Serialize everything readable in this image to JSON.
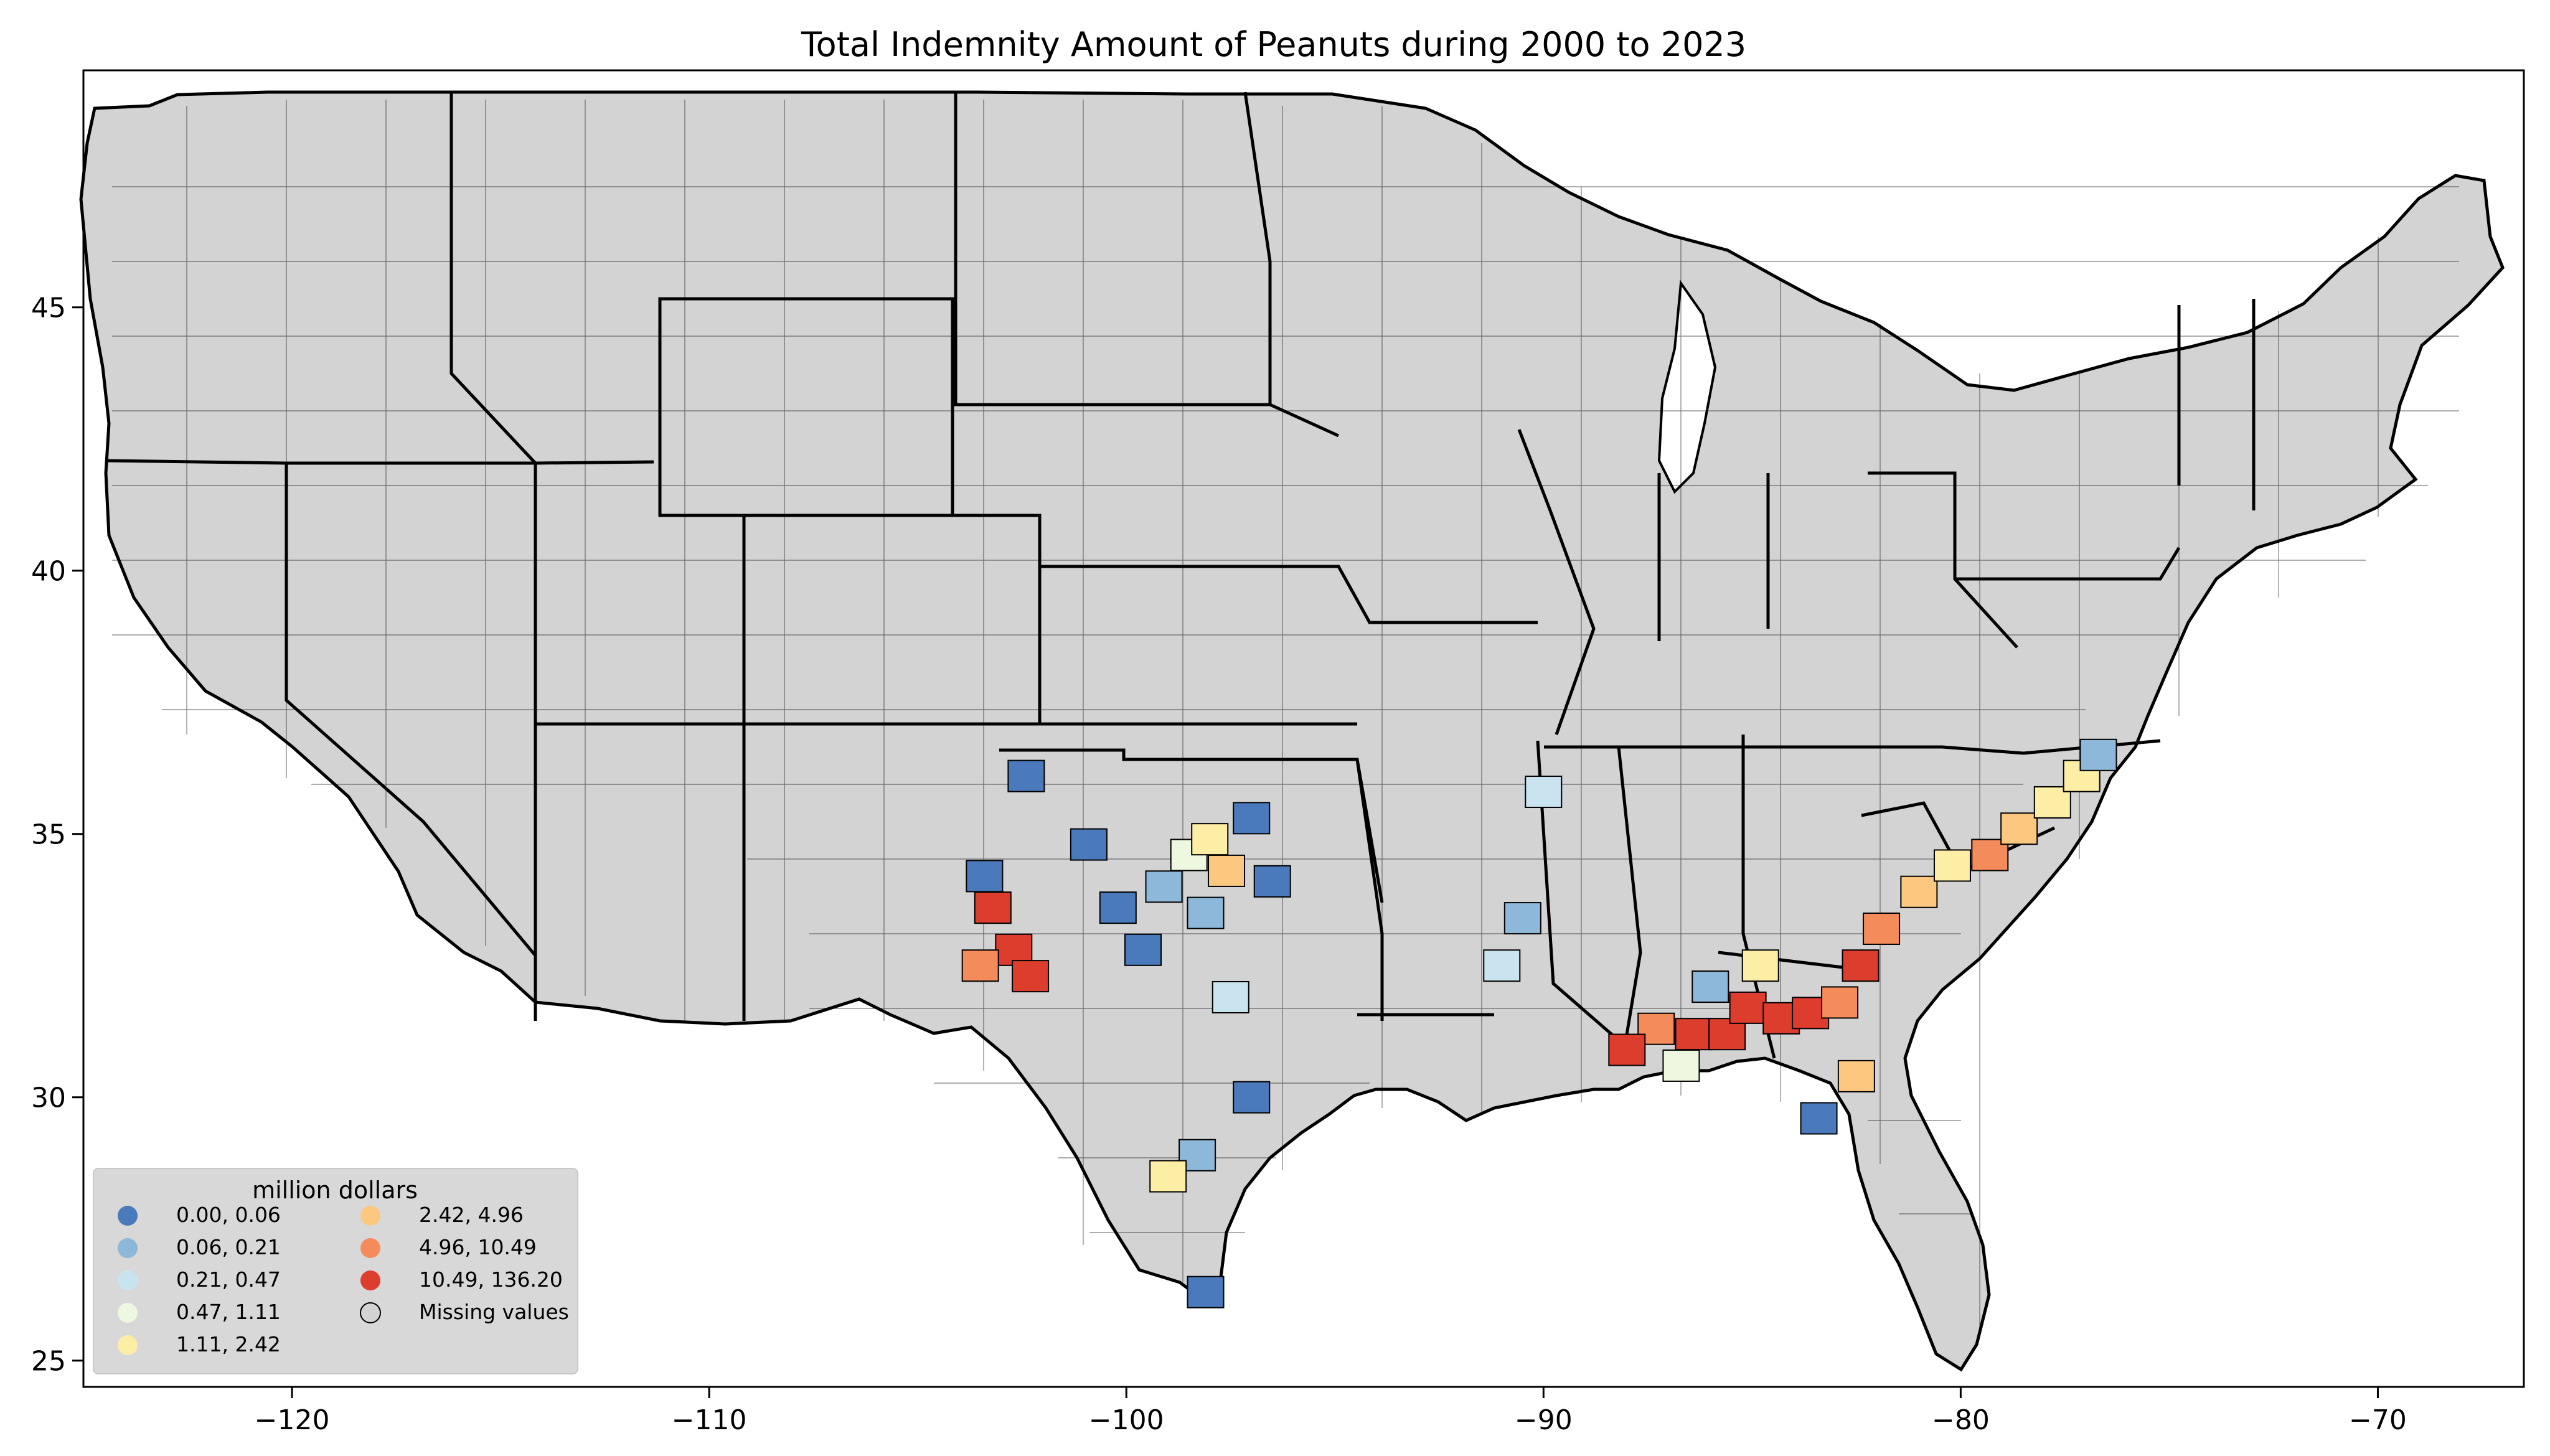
{
  "title": "Total Indemnity Amount of Peanuts during 2000 to 2023",
  "axes": {
    "x_ticks": [
      {
        "value": -120,
        "label": "−120"
      },
      {
        "value": -110,
        "label": "−110"
      },
      {
        "value": -100,
        "label": "−100"
      },
      {
        "value": -90,
        "label": "−90"
      },
      {
        "value": -80,
        "label": "−80"
      },
      {
        "value": -70,
        "label": "−70"
      }
    ],
    "y_ticks": [
      {
        "value": 25,
        "label": "25"
      },
      {
        "value": 30,
        "label": "30"
      },
      {
        "value": 35,
        "label": "35"
      },
      {
        "value": 40,
        "label": "40"
      },
      {
        "value": 45,
        "label": "45"
      }
    ],
    "xlim": [
      -125,
      -66.5
    ],
    "ylim": [
      24.5,
      49.5
    ]
  },
  "legend": {
    "title": "million dollars",
    "placement": "lower-left",
    "items": [
      {
        "label": "0.00,   0.06",
        "color": "#4a7abb"
      },
      {
        "label": "0.06,   0.21",
        "color": "#8db8d9"
      },
      {
        "label": "0.21,   0.47",
        "color": "#c9e4ef"
      },
      {
        "label": "0.47,   1.11",
        "color": "#eef7e0"
      },
      {
        "label": "1.11,   2.42",
        "color": "#fdeea6"
      },
      {
        "label": "2.42,   4.96",
        "color": "#fcc77e"
      },
      {
        "label": "4.96,  10.49",
        "color": "#f48b5a"
      },
      {
        "label": "10.49, 136.20",
        "color": "#dd3d2d"
      },
      {
        "label": "Missing values",
        "color": "#d3d3d3"
      }
    ]
  },
  "colors": {
    "land": "#d3d3d3",
    "border": "#000000"
  },
  "regions": [
    {
      "lon": -103.2,
      "lat": 33.6,
      "bin": 7
    },
    {
      "lon": -102.7,
      "lat": 32.8,
      "bin": 7
    },
    {
      "lon": -102.3,
      "lat": 32.3,
      "bin": 7
    },
    {
      "lon": -103.5,
      "lat": 32.5,
      "bin": 6
    },
    {
      "lon": -103.4,
      "lat": 34.2,
      "bin": 0
    },
    {
      "lon": -102.4,
      "lat": 36.1,
      "bin": 0
    },
    {
      "lon": -100.9,
      "lat": 34.8,
      "bin": 0
    },
    {
      "lon": -100.2,
      "lat": 33.6,
      "bin": 0
    },
    {
      "lon": -99.6,
      "lat": 32.8,
      "bin": 0
    },
    {
      "lon": -99.1,
      "lat": 34.0,
      "bin": 1
    },
    {
      "lon": -98.5,
      "lat": 34.6,
      "bin": 3
    },
    {
      "lon": -98.0,
      "lat": 34.9,
      "bin": 4
    },
    {
      "lon": -97.6,
      "lat": 34.3,
      "bin": 5
    },
    {
      "lon": -97.0,
      "lat": 35.3,
      "bin": 0
    },
    {
      "lon": -96.5,
      "lat": 34.1,
      "bin": 0
    },
    {
      "lon": -98.1,
      "lat": 33.5,
      "bin": 1
    },
    {
      "lon": -97.5,
      "lat": 31.9,
      "bin": 2
    },
    {
      "lon": -97.0,
      "lat": 30.0,
      "bin": 0
    },
    {
      "lon": -98.3,
      "lat": 28.9,
      "bin": 1
    },
    {
      "lon": -99.0,
      "lat": 28.5,
      "bin": 4
    },
    {
      "lon": -98.1,
      "lat": 26.3,
      "bin": 0
    },
    {
      "lon": -90.0,
      "lat": 35.8,
      "bin": 2
    },
    {
      "lon": -90.5,
      "lat": 33.4,
      "bin": 1
    },
    {
      "lon": -91.0,
      "lat": 32.5,
      "bin": 2
    },
    {
      "lon": -87.3,
      "lat": 31.3,
      "bin": 6
    },
    {
      "lon": -86.4,
      "lat": 31.2,
      "bin": 7
    },
    {
      "lon": -85.6,
      "lat": 31.2,
      "bin": 7
    },
    {
      "lon": -85.1,
      "lat": 31.7,
      "bin": 7
    },
    {
      "lon": -84.3,
      "lat": 31.5,
      "bin": 7
    },
    {
      "lon": -83.6,
      "lat": 31.6,
      "bin": 7
    },
    {
      "lon": -82.9,
      "lat": 31.8,
      "bin": 6
    },
    {
      "lon": -82.4,
      "lat": 32.5,
      "bin": 7
    },
    {
      "lon": -81.9,
      "lat": 33.2,
      "bin": 6
    },
    {
      "lon": -81.0,
      "lat": 33.9,
      "bin": 5
    },
    {
      "lon": -80.2,
      "lat": 34.4,
      "bin": 4
    },
    {
      "lon": -79.3,
      "lat": 34.6,
      "bin": 6
    },
    {
      "lon": -78.6,
      "lat": 35.1,
      "bin": 5
    },
    {
      "lon": -77.8,
      "lat": 35.6,
      "bin": 4
    },
    {
      "lon": -77.1,
      "lat": 36.1,
      "bin": 4
    },
    {
      "lon": -76.7,
      "lat": 36.5,
      "bin": 1
    },
    {
      "lon": -82.5,
      "lat": 30.4,
      "bin": 5
    },
    {
      "lon": -83.4,
      "lat": 29.6,
      "bin": 0
    },
    {
      "lon": -86.7,
      "lat": 30.6,
      "bin": 3
    },
    {
      "lon": -88.0,
      "lat": 30.9,
      "bin": 7
    },
    {
      "lon": -86.0,
      "lat": 32.1,
      "bin": 1
    },
    {
      "lon": -84.8,
      "lat": 32.5,
      "bin": 4
    }
  ]
}
